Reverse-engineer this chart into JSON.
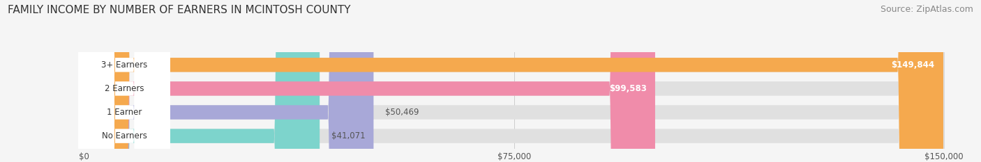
{
  "title": "FAMILY INCOME BY NUMBER OF EARNERS IN MCINTOSH COUNTY",
  "source": "Source: ZipAtlas.com",
  "categories": [
    "No Earners",
    "1 Earner",
    "2 Earners",
    "3+ Earners"
  ],
  "values": [
    41071,
    50469,
    99583,
    149844
  ],
  "bar_colors": [
    "#7dd4cc",
    "#a8a8d8",
    "#f08caa",
    "#f5a94e"
  ],
  "bar_bg_color": "#e0e0e0",
  "label_colors": [
    "#333333",
    "#333333",
    "#ffffff",
    "#ffffff"
  ],
  "max_value": 150000,
  "xtick_labels": [
    "$0",
    "$75,000",
    "$150,000"
  ],
  "xtick_values": [
    0,
    75000,
    150000
  ],
  "background_color": "#f5f5f5",
  "title_fontsize": 11,
  "source_fontsize": 9
}
